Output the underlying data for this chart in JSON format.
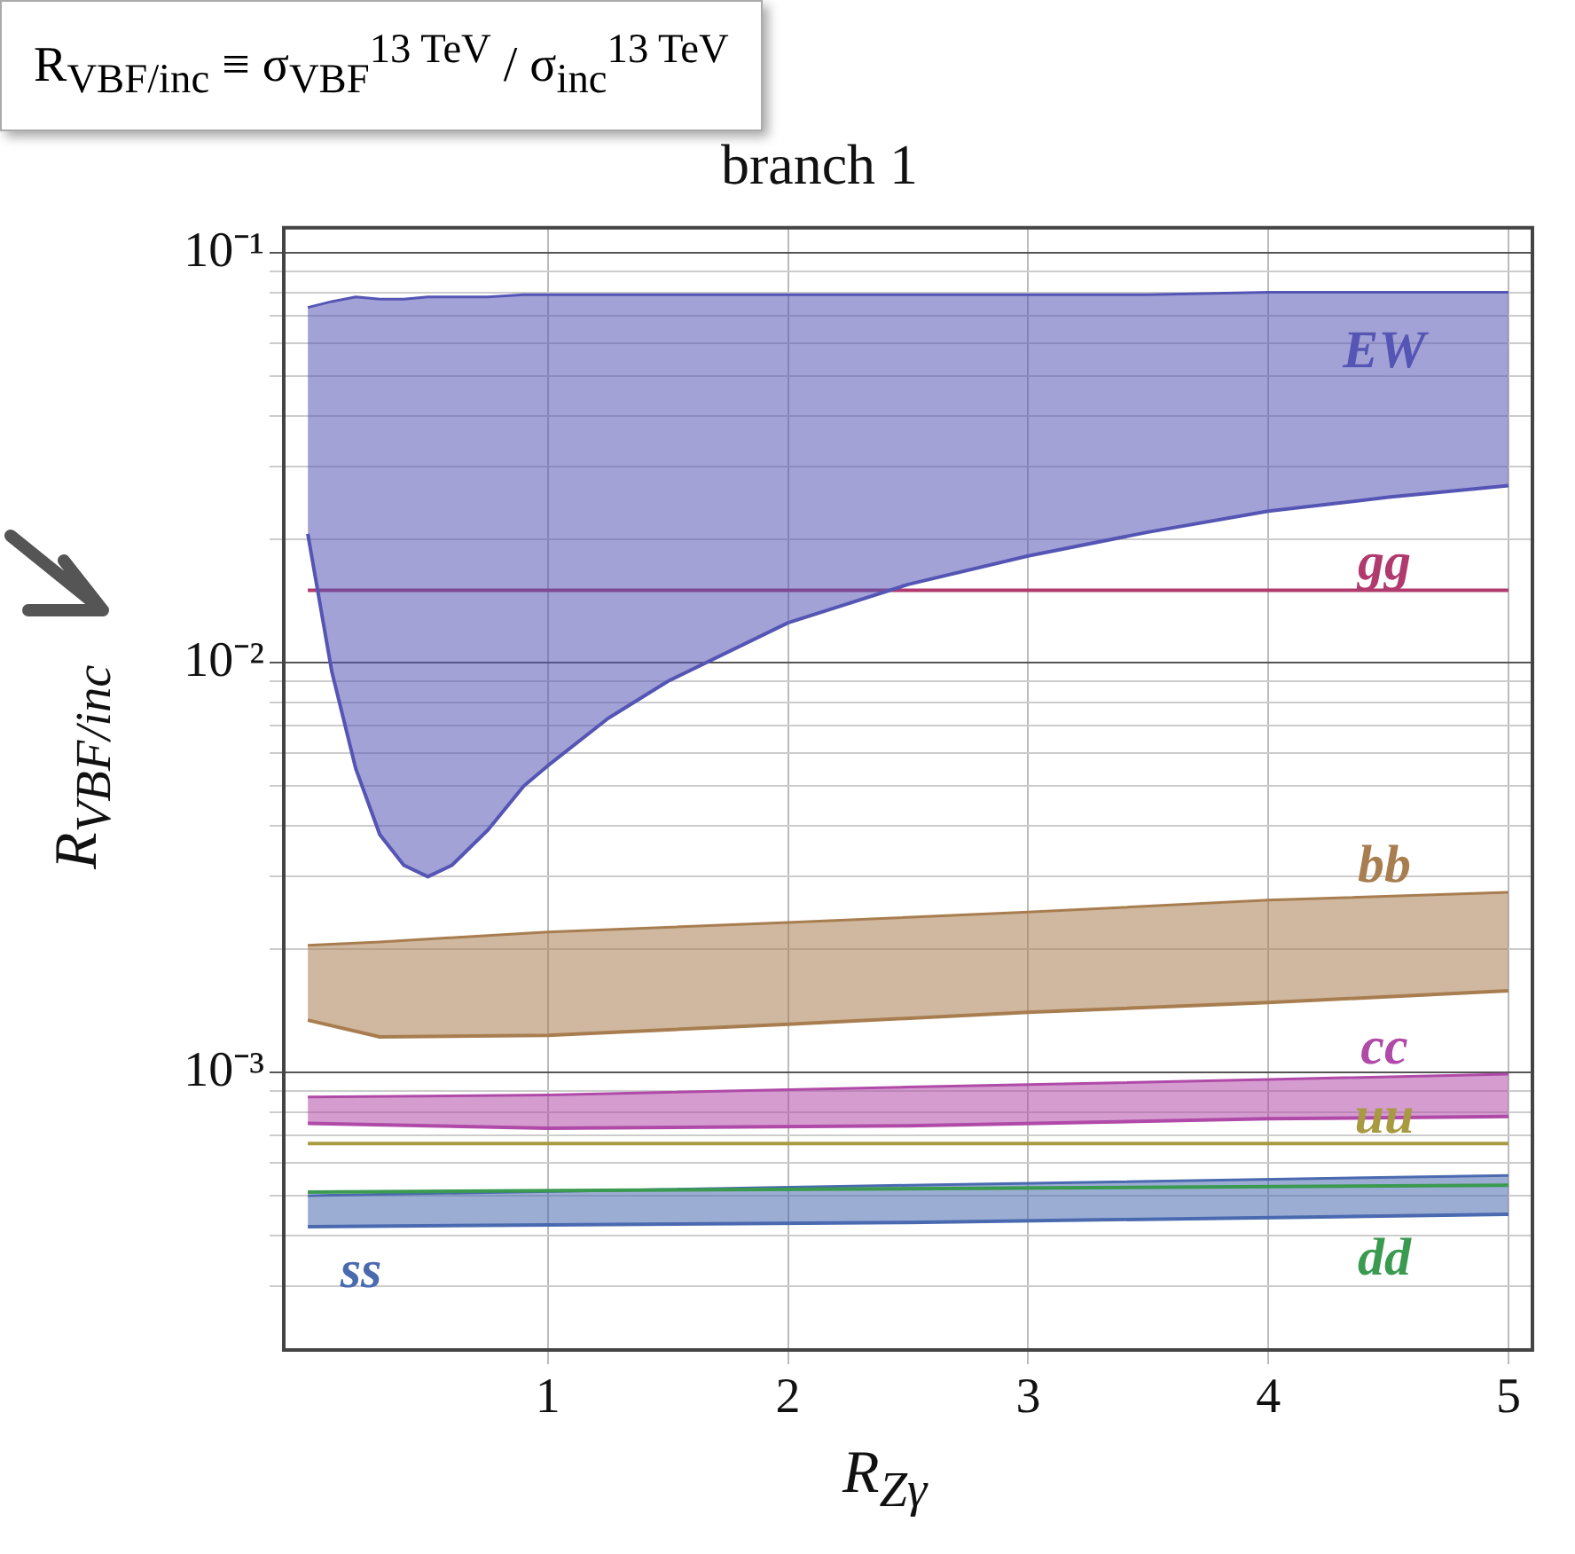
{
  "chart_data": {
    "type": "line",
    "title": "branch 1",
    "xlabel": "R$_{Zγ}$",
    "ylabel": "R$_{VBF/inc}$",
    "annotations": [
      "R$_{VBF/inc}$ ≡ σ$_{VBF}$$^{13 TeV}$ / σ$_{inc}$$^{13 TeV}$"
    ],
    "log": "y",
    "grid": true,
    "legend": false,
    "marker": "none",
    "xlim": [
      -0.1,
      5.1
    ],
    "xticks": [
      1,
      2,
      3,
      4,
      5
    ],
    "ylim": [
      0.00021,
      0.115
    ],
    "yticks": [
      {
        "value": 0.0003,
        "label": null
      },
      {
        "value": 0.0004,
        "label": null
      },
      {
        "value": 0.0005,
        "label": null
      },
      {
        "value": 0.0006,
        "label": null
      },
      {
        "value": 0.0007,
        "label": null
      },
      {
        "value": 0.0008,
        "label": null
      },
      {
        "value": 0.0009,
        "label": null
      },
      {
        "value": 0.001,
        "label": "10⁻³"
      },
      {
        "value": 0.002,
        "label": null
      },
      {
        "value": 0.003,
        "label": null
      },
      {
        "value": 0.004,
        "label": null
      },
      {
        "value": 0.005,
        "label": null
      },
      {
        "value": 0.006,
        "label": null
      },
      {
        "value": 0.007,
        "label": null
      },
      {
        "value": 0.008,
        "label": null
      },
      {
        "value": 0.009,
        "label": null
      },
      {
        "value": 0.01,
        "label": "10⁻²"
      },
      {
        "value": 0.02,
        "label": null
      },
      {
        "value": 0.03,
        "label": null
      },
      {
        "value": 0.04,
        "label": null
      },
      {
        "value": 0.05,
        "label": null
      },
      {
        "value": 0.06,
        "label": null
      },
      {
        "value": 0.07,
        "label": null
      },
      {
        "value": 0.08,
        "label": null
      },
      {
        "value": 0.09,
        "label": null
      },
      {
        "value": 0.1,
        "label": "10⁻¹"
      }
    ],
    "series": [
      {
        "name": "EW",
        "type": "area",
        "color": "#5555b5",
        "x": [
          0,
          0.1,
          0.2,
          0.3,
          0.4,
          0.5,
          0.6,
          0.75,
          0.9,
          1,
          1.25,
          1.5,
          2,
          2.5,
          3,
          3.5,
          4,
          4.5,
          5
        ],
        "values": [
          0.0735,
          0.076,
          0.078,
          0.077,
          0.077,
          0.078,
          0.078,
          0.078,
          0.079,
          0.079,
          0.079,
          0.079,
          0.079,
          0.079,
          0.079,
          0.079,
          0.08,
          0.08,
          0.08
        ]
      },
      {
        "color": "#5555b5",
        "x": [
          0,
          0.1,
          0.2,
          0.3,
          0.4,
          0.5,
          0.6,
          0.75,
          0.9,
          1,
          1.25,
          1.5,
          2,
          2.5,
          3,
          3.5,
          4,
          4.5,
          5
        ],
        "values": [
          0.0206,
          0.0095,
          0.0055,
          0.0038,
          0.0032,
          0.003,
          0.0032,
          0.0039,
          0.005,
          0.0056,
          0.0073,
          0.009,
          0.0125,
          0.0155,
          0.0182,
          0.0208,
          0.0234,
          0.0253,
          0.027
        ]
      },
      {
        "name": "gg",
        "color": "#b03a6e",
        "x": [
          0,
          5
        ],
        "values": [
          0.015,
          0.015
        ]
      },
      {
        "name": "bb",
        "type": "area",
        "color": "#a87d50",
        "x": [
          0,
          0.3,
          1,
          2,
          3,
          4,
          5
        ],
        "values": [
          0.00204,
          0.00208,
          0.0022,
          0.00232,
          0.00246,
          0.00263,
          0.00275
        ]
      },
      {
        "color": "#a87d50",
        "x": [
          0,
          0.3,
          1,
          2,
          3,
          4,
          5
        ],
        "values": [
          0.00134,
          0.00122,
          0.00123,
          0.00131,
          0.0014,
          0.00148,
          0.00158
        ]
      },
      {
        "name": "cc",
        "type": "area",
        "color": "#b04aa8",
        "x": [
          0,
          1,
          2.5,
          4,
          5
        ],
        "values": [
          0.00087,
          0.00088,
          0.00092,
          0.00096,
          0.00099
        ]
      },
      {
        "color": "#b04aa8",
        "x": [
          0,
          1,
          2.5,
          4,
          5
        ],
        "values": [
          0.00075,
          0.00073,
          0.00074,
          0.00077,
          0.00078
        ]
      },
      {
        "name": "uu",
        "color": "#a89a40",
        "x": [
          0,
          5
        ],
        "values": [
          0.00067,
          0.00067
        ]
      },
      {
        "name": "dd",
        "color": "#3a9a50",
        "x": [
          0,
          5
        ],
        "values": [
          0.00051,
          0.00053
        ]
      },
      {
        "name": "ss",
        "type": "area",
        "color": "#4a6ab0",
        "x": [
          0,
          2.5,
          5
        ],
        "values": [
          0.0005,
          0.00053,
          0.00056
        ]
      },
      {
        "color": "#4a6ab0",
        "x": [
          0,
          2.5,
          5
        ],
        "values": [
          0.00042,
          0.00043,
          0.00045
        ]
      }
    ]
  }
}
